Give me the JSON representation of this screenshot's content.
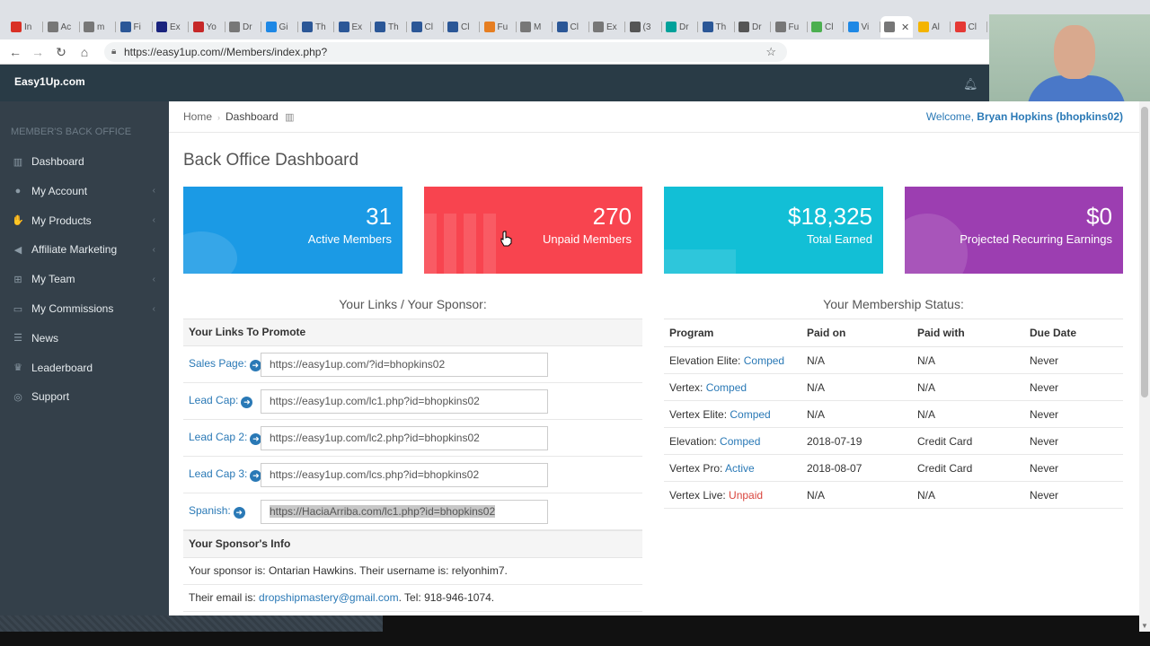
{
  "browser": {
    "tabs": [
      {
        "label": "In",
        "color": "#d93025"
      },
      {
        "label": "Ac",
        "color": "#777777"
      },
      {
        "label": "m",
        "color": "#777777"
      },
      {
        "label": "Fi",
        "color": "#2b5797"
      },
      {
        "label": "Ex",
        "color": "#1a237e"
      },
      {
        "label": "Yo",
        "color": "#c62828"
      },
      {
        "label": "Dr",
        "color": "#777777"
      },
      {
        "label": "Gi",
        "color": "#1e88e5"
      },
      {
        "label": "Th",
        "color": "#2b5797"
      },
      {
        "label": "Ex",
        "color": "#2b5797"
      },
      {
        "label": "Th",
        "color": "#2b5797"
      },
      {
        "label": "Cl",
        "color": "#2b5797"
      },
      {
        "label": "Cl",
        "color": "#2b5797"
      },
      {
        "label": "Fu",
        "color": "#e67e22"
      },
      {
        "label": "M",
        "color": "#777777"
      },
      {
        "label": "Cl",
        "color": "#2b5797"
      },
      {
        "label": "Ex",
        "color": "#777777"
      },
      {
        "label": "(3",
        "color": "#555555"
      },
      {
        "label": "Dr",
        "color": "#00a19a"
      },
      {
        "label": "Th",
        "color": "#2b5797"
      },
      {
        "label": "Dr",
        "color": "#555555"
      },
      {
        "label": "Fu",
        "color": "#777777"
      },
      {
        "label": "Cl",
        "color": "#4caf50"
      },
      {
        "label": "Vi",
        "color": "#1e88e5"
      },
      {
        "label": "",
        "color": "#777777",
        "active": true
      },
      {
        "label": "Al",
        "color": "#f4b400"
      },
      {
        "label": "Cl",
        "color": "#e53935"
      }
    ],
    "url": "https://easy1up.com//Members/index.php?"
  },
  "header": {
    "brand": "Easy1Up.com"
  },
  "sidebar": {
    "title": "MEMBER'S BACK OFFICE",
    "items": [
      {
        "label": "Dashboard",
        "icon": "bar-chart-icon",
        "glyph": "▥",
        "chevron": false
      },
      {
        "label": "My Account",
        "icon": "user-icon",
        "glyph": "●",
        "chevron": true
      },
      {
        "label": "My Products",
        "icon": "thumbs-up-icon",
        "glyph": "✋",
        "chevron": true
      },
      {
        "label": "Affiliate Marketing",
        "icon": "bullhorn-icon",
        "glyph": "◀",
        "chevron": true
      },
      {
        "label": "My Team",
        "icon": "sitemap-icon",
        "glyph": "⊞",
        "chevron": true
      },
      {
        "label": "My Commissions",
        "icon": "money-icon",
        "glyph": "▭",
        "chevron": true
      },
      {
        "label": "News",
        "icon": "list-icon",
        "glyph": "☰",
        "chevron": false
      },
      {
        "label": "Leaderboard",
        "icon": "trophy-icon",
        "glyph": "♛",
        "chevron": false
      },
      {
        "label": "Support",
        "icon": "life-ring-icon",
        "glyph": "◎",
        "chevron": false
      }
    ]
  },
  "breadcrumb": {
    "home": "Home",
    "current": "Dashboard"
  },
  "welcome": {
    "prefix": "Welcome,",
    "name": "Bryan Hopkins (bhopkins02)"
  },
  "page_title": "Back Office Dashboard",
  "stats": [
    {
      "value": "31",
      "label": "Active Members",
      "color": "#1b9ae5"
    },
    {
      "value": "270",
      "label": "Unpaid Members",
      "color": "#f8444f"
    },
    {
      "value": "$18,325",
      "label": "Total Earned",
      "color": "#12bfd6"
    },
    {
      "value": "$0",
      "label": "Projected Recurring Earnings",
      "color": "#9c3eb1"
    }
  ],
  "links_section": {
    "title": "Your Links / Your Sponsor:",
    "header": "Your Links To Promote",
    "links": [
      {
        "label": "Sales Page:",
        "url": "https://easy1up.com/?id=bhopkins02"
      },
      {
        "label": "Lead Cap:",
        "url": "https://easy1up.com/lc1.php?id=bhopkins02"
      },
      {
        "label": "Lead Cap 2:",
        "url": "https://easy1up.com/lc2.php?id=bhopkins02"
      },
      {
        "label": "Lead Cap 3:",
        "url": "https://easy1up.com/lcs.php?id=bhopkins02"
      },
      {
        "label": "Spanish:",
        "url": "https://HaciaArriba.com/lc1.php?id=bhopkins02"
      }
    ],
    "sponsor_header": "Your Sponsor's Info",
    "sponsor_line": "Your sponsor is: Ontarian Hawkins. Their username is: relyonhim7.",
    "email_prefix": "Their email is:",
    "email": "dropshipmastery@gmail.com",
    "email_suffix": ". Tel: 918-946-1074."
  },
  "membership": {
    "title": "Your Membership Status:",
    "columns": [
      "Program",
      "Paid on",
      "Paid with",
      "Due Date"
    ],
    "rows": [
      {
        "program": "Elevation Elite:",
        "status": "Comped",
        "paid_on": "N/A",
        "paid_with": "N/A",
        "due": "Never"
      },
      {
        "program": "Vertex:",
        "status": "Comped",
        "paid_on": "N/A",
        "paid_with": "N/A",
        "due": "Never"
      },
      {
        "program": "Vertex Elite:",
        "status": "Comped",
        "paid_on": "N/A",
        "paid_with": "N/A",
        "due": "Never"
      },
      {
        "program": "Elevation:",
        "status": "Comped",
        "paid_on": "2018-07-19",
        "paid_with": "Credit Card",
        "due": "Never"
      },
      {
        "program": "Vertex Pro:",
        "status": "Active",
        "paid_on": "2018-08-07",
        "paid_with": "Credit Card",
        "due": "Never"
      },
      {
        "program": "Vertex Live:",
        "status": "Unpaid",
        "paid_on": "N/A",
        "paid_with": "N/A",
        "due": "Never"
      }
    ]
  }
}
